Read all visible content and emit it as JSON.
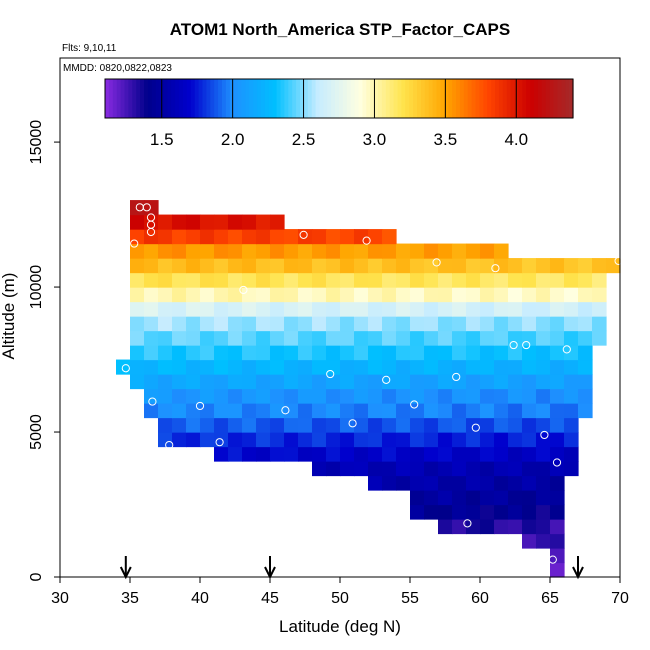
{
  "chart_data": {
    "type": "heatmap",
    "title": "ATOM1 North_America STP_Factor_CAPS",
    "flights_label": "Flts: 9,10,11",
    "dates_label": "MMDD: 0820,0822,0823",
    "xlabel": "Latitude (deg N)",
    "ylabel": "Altitude (m)",
    "xlim": [
      30,
      70
    ],
    "ylim": [
      0,
      17900
    ],
    "x_ticks": [
      "30",
      "35",
      "40",
      "45",
      "50",
      "55",
      "60",
      "65",
      "70"
    ],
    "y_ticks": [
      "0",
      "5000",
      "10000",
      "15000"
    ],
    "colorbar": {
      "range": [
        1.1,
        4.4
      ],
      "tick_labels": [
        "1.5",
        "2.0",
        "2.5",
        "3.0",
        "3.5",
        "4.0"
      ],
      "colors": [
        "#8a2be2",
        "#00008b",
        "#0000cd",
        "#1e90ff",
        "#00bfff",
        "#c6ecff",
        "#ffffe0",
        "#ffe44d",
        "#ffa500",
        "#ff4500",
        "#cc0000",
        "#a52a2a"
      ]
    },
    "cell_size": {
      "dlat": 1.0,
      "dalt": 500
    },
    "rows": [
      {
        "alt": 250,
        "lat_min": 65,
        "lat_max": 66,
        "value": 1.2
      },
      {
        "alt": 750,
        "lat_min": 65,
        "lat_max": 66,
        "value": 1.25
      },
      {
        "alt": 1250,
        "lat_min": 63,
        "lat_max": 66,
        "value": 1.3
      },
      {
        "alt": 1750,
        "lat_min": 57,
        "lat_max": 66,
        "value": 1.35
      },
      {
        "alt": 2250,
        "lat_min": 55,
        "lat_max": 66,
        "value": 1.45
      },
      {
        "alt": 2750,
        "lat_min": 55,
        "lat_max": 66,
        "value": 1.5
      },
      {
        "alt": 3250,
        "lat_min": 52,
        "lat_max": 66,
        "value": 1.55
      },
      {
        "alt": 3750,
        "lat_min": 48,
        "lat_max": 67,
        "value": 1.6
      },
      {
        "alt": 4250,
        "lat_min": 41,
        "lat_max": 67,
        "value": 1.7
      },
      {
        "alt": 4750,
        "lat_min": 37,
        "lat_max": 67,
        "value": 1.8
      },
      {
        "alt": 5250,
        "lat_min": 37,
        "lat_max": 67,
        "value": 1.9
      },
      {
        "alt": 5750,
        "lat_min": 36,
        "lat_max": 68,
        "value": 2.0
      },
      {
        "alt": 6250,
        "lat_min": 36,
        "lat_max": 68,
        "value": 2.05
      },
      {
        "alt": 6750,
        "lat_min": 35,
        "lat_max": 68,
        "value": 2.15
      },
      {
        "alt": 7250,
        "lat_min": 34,
        "lat_max": 68,
        "value": 2.25
      },
      {
        "alt": 7750,
        "lat_min": 35,
        "lat_max": 68,
        "value": 2.35
      },
      {
        "alt": 8250,
        "lat_min": 35,
        "lat_max": 69,
        "value": 2.45
      },
      {
        "alt": 8750,
        "lat_min": 35,
        "lat_max": 69,
        "value": 2.55
      },
      {
        "alt": 9250,
        "lat_min": 35,
        "lat_max": 69,
        "value": 2.7
      },
      {
        "alt": 9750,
        "lat_min": 35,
        "lat_max": 69,
        "value": 3.0
      },
      {
        "alt": 10250,
        "lat_min": 35,
        "lat_max": 69,
        "value": 3.2
      },
      {
        "alt": 10750,
        "lat_min": 35,
        "lat_max": 70,
        "value": 3.4
      },
      {
        "alt": 11250,
        "lat_min": 35,
        "lat_max": 62,
        "value": 3.55
      },
      {
        "alt": 11750,
        "lat_min": 35,
        "lat_max": 54,
        "value": 3.85
      },
      {
        "alt": 12250,
        "lat_min": 35,
        "lat_max": 46,
        "value": 4.05
      },
      {
        "alt": 12750,
        "lat_min": 35,
        "lat_max": 37,
        "value": 4.3
      }
    ],
    "flight_points": [
      {
        "lat": 34.7,
        "alt": 7200
      },
      {
        "lat": 35.3,
        "alt": 11500
      },
      {
        "lat": 35.7,
        "alt": 12750
      },
      {
        "lat": 36.2,
        "alt": 12750
      },
      {
        "lat": 36.5,
        "alt": 12400
      },
      {
        "lat": 36.5,
        "alt": 12150
      },
      {
        "lat": 36.5,
        "alt": 11900
      },
      {
        "lat": 36.6,
        "alt": 6050
      },
      {
        "lat": 37.8,
        "alt": 4550
      },
      {
        "lat": 40.0,
        "alt": 5900
      },
      {
        "lat": 41.4,
        "alt": 4650
      },
      {
        "lat": 43.1,
        "alt": 9900
      },
      {
        "lat": 46.1,
        "alt": 5750
      },
      {
        "lat": 47.4,
        "alt": 11800
      },
      {
        "lat": 49.3,
        "alt": 7000
      },
      {
        "lat": 50.9,
        "alt": 5300
      },
      {
        "lat": 51.9,
        "alt": 11600
      },
      {
        "lat": 53.3,
        "alt": 6800
      },
      {
        "lat": 55.3,
        "alt": 5950
      },
      {
        "lat": 56.9,
        "alt": 10850
      },
      {
        "lat": 58.3,
        "alt": 6900
      },
      {
        "lat": 59.1,
        "alt": 1850
      },
      {
        "lat": 59.7,
        "alt": 5150
      },
      {
        "lat": 61.1,
        "alt": 10650
      },
      {
        "lat": 62.4,
        "alt": 8000
      },
      {
        "lat": 63.3,
        "alt": 8000
      },
      {
        "lat": 64.6,
        "alt": 4900
      },
      {
        "lat": 65.2,
        "alt": 600
      },
      {
        "lat": 65.5,
        "alt": 3950
      },
      {
        "lat": 66.2,
        "alt": 7850
      },
      {
        "lat": 69.9,
        "alt": 10900
      }
    ],
    "markers": [
      34.7,
      45.0,
      67.0
    ]
  }
}
